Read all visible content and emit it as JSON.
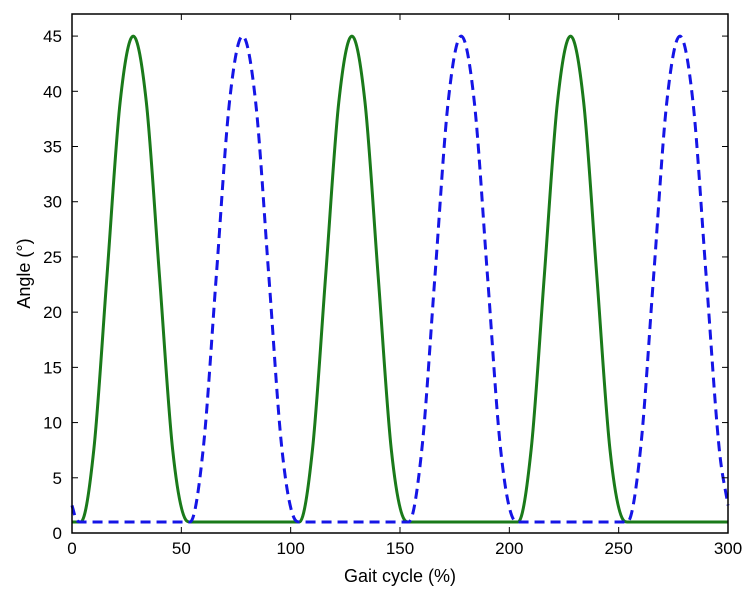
{
  "chart_data": {
    "type": "line",
    "title": "",
    "xlabel": "Gait cycle (%)",
    "ylabel": "Angle (°)",
    "xlim": [
      0,
      300
    ],
    "ylim": [
      0,
      47
    ],
    "xticks": [
      0,
      50,
      100,
      150,
      200,
      250,
      300
    ],
    "yticks": [
      0,
      5,
      10,
      15,
      20,
      25,
      30,
      35,
      40,
      45
    ],
    "grid": false,
    "legend": "none",
    "series": [
      {
        "style": "solid",
        "color": "#1a7a1a",
        "x": [
          0,
          4,
          10,
          16,
          22,
          28,
          34,
          40,
          46,
          52,
          54,
          100,
          104,
          110,
          116,
          122,
          128,
          134,
          140,
          146,
          152,
          154,
          200,
          204,
          210,
          216,
          222,
          228,
          234,
          240,
          246,
          252,
          254,
          300
        ],
        "y": [
          1,
          1,
          7.6,
          23.3,
          39.0,
          45.0,
          39.0,
          23.3,
          7.6,
          1.2,
          1,
          1,
          1,
          7.6,
          23.3,
          39.0,
          45.0,
          39.0,
          23.3,
          7.6,
          1.2,
          1,
          1,
          1,
          7.6,
          23.3,
          39.0,
          45.0,
          39.0,
          23.3,
          7.6,
          1.2,
          1,
          1
        ]
      },
      {
        "style": "dashed",
        "color": "#1515e6",
        "x": [
          0,
          2,
          4,
          54,
          60,
          66,
          72,
          78,
          84,
          90,
          96,
          102,
          104,
          154,
          160,
          166,
          172,
          178,
          184,
          190,
          196,
          202,
          204,
          254,
          260,
          266,
          272,
          278,
          284,
          290,
          296,
          300
        ],
        "y": [
          2.5,
          1.2,
          1,
          1,
          7.6,
          23.3,
          39.0,
          45.0,
          39.0,
          23.3,
          7.6,
          1.2,
          1,
          1,
          7.6,
          23.3,
          39.0,
          45.0,
          39.0,
          23.3,
          7.6,
          1.2,
          1,
          1,
          7.6,
          23.3,
          39.0,
          45.0,
          39.0,
          23.3,
          7.6,
          2.5
        ]
      }
    ]
  }
}
